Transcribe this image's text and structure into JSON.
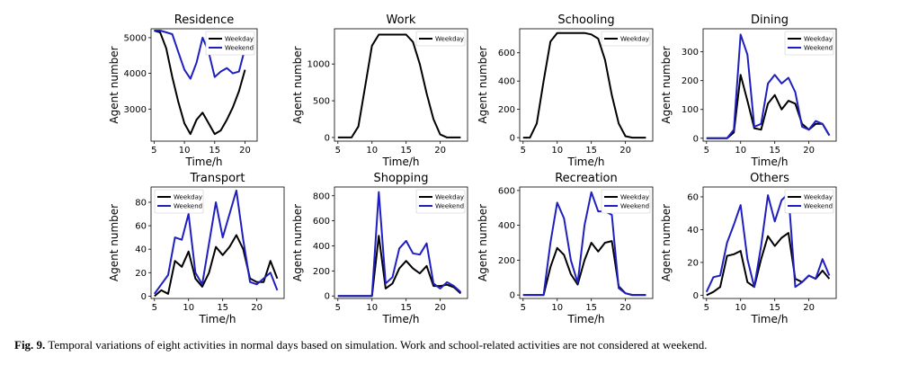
{
  "colors": {
    "weekday": "#000000",
    "weekend": "#1f1fbf"
  },
  "caption": {
    "label": "Fig. 9.",
    "text": " Temporal variations of eight activities in normal days based on simulation. Work and school-related activities are not considered at weekend."
  },
  "chart_data": [
    {
      "type": "line",
      "title": "Residence",
      "xlabel": "Time/h",
      "ylabel": "Agent number",
      "xlim": [
        4.5,
        22
      ],
      "ylim": [
        2100,
        5250
      ],
      "xticks": [
        5,
        10,
        15,
        20
      ],
      "yticks": [
        3000,
        4000,
        5000
      ],
      "legend": "top-right",
      "series": [
        {
          "name": "Weekday",
          "key": "weekday",
          "x": [
            5,
            6,
            7,
            8,
            9,
            10,
            11,
            12,
            13,
            14,
            15,
            16,
            17,
            18,
            19,
            20
          ],
          "values": [
            5200,
            5150,
            4700,
            3900,
            3200,
            2600,
            2300,
            2700,
            2900,
            2600,
            2300,
            2400,
            2700,
            3050,
            3500,
            4100
          ]
        },
        {
          "name": "Weekend",
          "key": "weekend",
          "x": [
            5,
            6,
            7,
            8,
            9,
            10,
            11,
            12,
            13,
            14,
            15,
            16,
            17,
            18,
            19,
            20
          ],
          "values": [
            5200,
            5200,
            5150,
            5100,
            4600,
            4100,
            3850,
            4300,
            5000,
            4600,
            3900,
            4050,
            4150,
            4000,
            4050,
            4700
          ]
        }
      ]
    },
    {
      "type": "line",
      "title": "Work",
      "xlabel": "Time/h",
      "ylabel": "Agent number",
      "xlim": [
        4.5,
        24
      ],
      "ylim": [
        -50,
        1480
      ],
      "xticks": [
        5,
        10,
        15,
        20
      ],
      "yticks": [
        0,
        500,
        1000
      ],
      "legend": "top-right",
      "series": [
        {
          "name": "Weekday",
          "key": "weekday",
          "x": [
            5,
            6,
            7,
            8,
            9,
            10,
            11,
            12,
            13,
            14,
            15,
            16,
            17,
            18,
            19,
            20,
            21,
            22,
            23
          ],
          "values": [
            0,
            0,
            0,
            150,
            700,
            1250,
            1400,
            1400,
            1400,
            1400,
            1400,
            1300,
            1000,
            600,
            250,
            40,
            0,
            0,
            0
          ]
        }
      ]
    },
    {
      "type": "line",
      "title": "Schooling",
      "xlabel": "Time/h",
      "ylabel": "Agent number",
      "xlim": [
        4.5,
        24
      ],
      "ylim": [
        -25,
        770
      ],
      "xticks": [
        5,
        10,
        15,
        20
      ],
      "yticks": [
        0,
        200,
        400,
        600
      ],
      "legend": "top-right",
      "series": [
        {
          "name": "Weekday",
          "key": "weekday",
          "x": [
            5,
            6,
            7,
            8,
            9,
            10,
            11,
            12,
            13,
            14,
            15,
            16,
            17,
            18,
            19,
            20,
            21,
            22,
            23
          ],
          "values": [
            0,
            0,
            100,
            400,
            680,
            740,
            740,
            740,
            740,
            740,
            730,
            700,
            550,
            300,
            100,
            10,
            0,
            0,
            0
          ]
        }
      ]
    },
    {
      "type": "line",
      "title": "Dining",
      "xlabel": "Time/h",
      "ylabel": "Agent number",
      "xlim": [
        4.5,
        24
      ],
      "ylim": [
        -10,
        380
      ],
      "xticks": [
        5,
        10,
        15,
        20
      ],
      "yticks": [
        0,
        100,
        200,
        300
      ],
      "legend": "top-right",
      "series": [
        {
          "name": "Weekday",
          "key": "weekday",
          "x": [
            5,
            6,
            7,
            8,
            9,
            10,
            11,
            12,
            13,
            14,
            15,
            16,
            17,
            18,
            19,
            20,
            21,
            22,
            23
          ],
          "values": [
            0,
            0,
            0,
            0,
            20,
            220,
            130,
            35,
            30,
            120,
            150,
            100,
            130,
            120,
            50,
            30,
            50,
            50,
            10
          ]
        },
        {
          "name": "Weekend",
          "key": "weekend",
          "x": [
            5,
            6,
            7,
            8,
            9,
            10,
            11,
            12,
            13,
            14,
            15,
            16,
            17,
            18,
            19,
            20,
            21,
            22,
            23
          ],
          "values": [
            0,
            0,
            0,
            0,
            30,
            360,
            290,
            40,
            50,
            190,
            220,
            190,
            210,
            160,
            40,
            30,
            60,
            50,
            10
          ]
        }
      ]
    },
    {
      "type": "line",
      "title": "Transport",
      "xlabel": "Time/h",
      "ylabel": "Agent number",
      "xlim": [
        4.5,
        24
      ],
      "ylim": [
        -2,
        93
      ],
      "xticks": [
        5,
        10,
        15,
        20
      ],
      "yticks": [
        0,
        20,
        40,
        60,
        80
      ],
      "legend": "top-left",
      "series": [
        {
          "name": "Weekday",
          "key": "weekday",
          "x": [
            5,
            6,
            7,
            8,
            9,
            10,
            11,
            12,
            13,
            14,
            15,
            16,
            17,
            18,
            19,
            20,
            21,
            22,
            23
          ],
          "values": [
            0,
            5,
            2,
            30,
            25,
            38,
            15,
            8,
            20,
            42,
            35,
            42,
            52,
            40,
            15,
            12,
            12,
            30,
            15
          ]
        },
        {
          "name": "Weekend",
          "key": "weekend",
          "x": [
            5,
            6,
            7,
            8,
            9,
            10,
            11,
            12,
            13,
            14,
            15,
            16,
            17,
            18,
            19,
            20,
            21,
            22,
            23
          ],
          "values": [
            2,
            10,
            18,
            50,
            48,
            70,
            20,
            10,
            45,
            80,
            50,
            70,
            90,
            48,
            12,
            10,
            15,
            20,
            5
          ]
        }
      ]
    },
    {
      "type": "line",
      "title": "Shopping",
      "xlabel": "Time/h",
      "ylabel": "Agent number",
      "xlim": [
        4.5,
        24
      ],
      "ylim": [
        -20,
        870
      ],
      "xticks": [
        5,
        10,
        15,
        20
      ],
      "yticks": [
        0,
        200,
        400,
        600,
        800
      ],
      "legend": "top-right",
      "series": [
        {
          "name": "Weekday",
          "key": "weekday",
          "x": [
            5,
            6,
            7,
            8,
            9,
            10,
            11,
            12,
            13,
            14,
            15,
            16,
            17,
            18,
            19,
            20,
            21,
            22,
            23
          ],
          "values": [
            0,
            0,
            0,
            0,
            0,
            0,
            480,
            60,
            100,
            220,
            280,
            220,
            180,
            240,
            80,
            80,
            90,
            70,
            20
          ]
        },
        {
          "name": "Weekend",
          "key": "weekend",
          "x": [
            5,
            6,
            7,
            8,
            9,
            10,
            11,
            12,
            13,
            14,
            15,
            16,
            17,
            18,
            19,
            20,
            21,
            22,
            23
          ],
          "values": [
            0,
            0,
            0,
            0,
            0,
            0,
            830,
            100,
            150,
            380,
            440,
            340,
            330,
            420,
            100,
            60,
            110,
            80,
            30
          ]
        }
      ]
    },
    {
      "type": "line",
      "title": "Recreation",
      "xlabel": "Time/h",
      "ylabel": "Agent number",
      "xlim": [
        4.5,
        24
      ],
      "ylim": [
        -20,
        620
      ],
      "xticks": [
        5,
        10,
        15,
        20
      ],
      "yticks": [
        0,
        200,
        400,
        600
      ],
      "legend": "top-right",
      "series": [
        {
          "name": "Weekday",
          "key": "weekday",
          "x": [
            5,
            6,
            7,
            8,
            9,
            10,
            11,
            12,
            13,
            14,
            15,
            16,
            17,
            18,
            19,
            20,
            21,
            22,
            23
          ],
          "values": [
            0,
            0,
            0,
            0,
            160,
            270,
            230,
            120,
            60,
            200,
            300,
            250,
            300,
            310,
            50,
            10,
            0,
            0,
            0
          ]
        },
        {
          "name": "Weekend",
          "key": "weekend",
          "x": [
            5,
            6,
            7,
            8,
            9,
            10,
            11,
            12,
            13,
            14,
            15,
            16,
            17,
            18,
            19,
            20,
            21,
            22,
            23
          ],
          "values": [
            0,
            0,
            0,
            0,
            300,
            530,
            440,
            200,
            70,
            400,
            590,
            480,
            480,
            460,
            40,
            10,
            0,
            0,
            0
          ]
        }
      ]
    },
    {
      "type": "line",
      "title": "Others",
      "xlabel": "Time/h",
      "ylabel": "Agent number",
      "xlim": [
        4.5,
        24
      ],
      "ylim": [
        -2,
        66
      ],
      "xticks": [
        5,
        10,
        15,
        20
      ],
      "yticks": [
        0,
        20,
        40,
        60
      ],
      "legend": "top-right",
      "series": [
        {
          "name": "Weekday",
          "key": "weekday",
          "x": [
            5,
            6,
            7,
            8,
            9,
            10,
            11,
            12,
            13,
            14,
            15,
            16,
            17,
            18,
            19,
            20,
            21,
            22,
            23
          ],
          "values": [
            0,
            2,
            5,
            24,
            25,
            27,
            8,
            5,
            22,
            36,
            30,
            35,
            38,
            10,
            8,
            12,
            10,
            15,
            10
          ]
        },
        {
          "name": "Weekend",
          "key": "weekend",
          "x": [
            5,
            6,
            7,
            8,
            9,
            10,
            11,
            12,
            13,
            14,
            15,
            16,
            17,
            18,
            19,
            20,
            21,
            22,
            23
          ],
          "values": [
            2,
            11,
            12,
            32,
            43,
            55,
            22,
            5,
            30,
            61,
            45,
            58,
            62,
            5,
            8,
            12,
            10,
            22,
            12
          ]
        }
      ]
    }
  ]
}
